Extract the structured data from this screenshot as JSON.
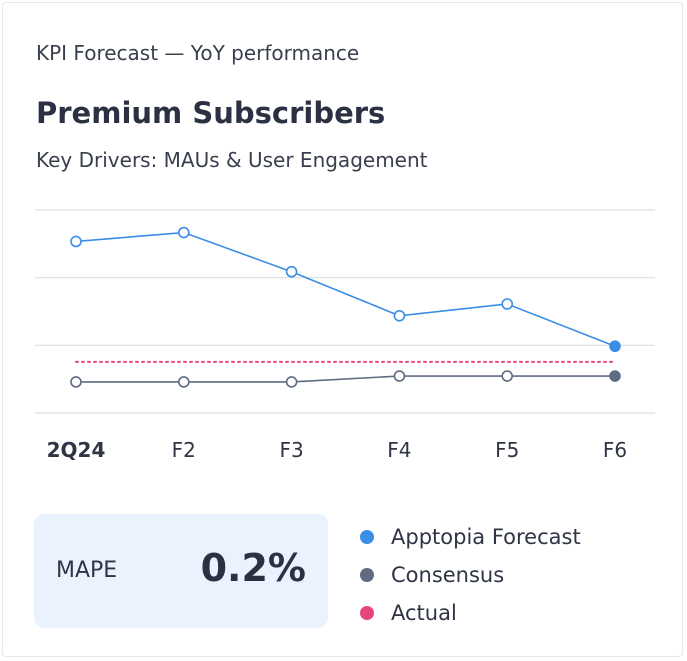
{
  "header": {
    "kicker": "KPI Forecast — YoY performance",
    "title": "Premium Subscribers",
    "subtitle": "Key Drivers: MAUs & User Engagement"
  },
  "chart_data": {
    "type": "line",
    "x": [
      "2Q24",
      "F2",
      "F3",
      "F4",
      "F5",
      "F6"
    ],
    "highlight_x": "2Q24",
    "ylim": [
      0,
      100
    ],
    "grid": true,
    "series": [
      {
        "name": "Apptopia Forecast",
        "color": "#3a8ee6",
        "values": [
          84.5,
          88.9,
          69.6,
          47.9,
          53.7,
          32.9
        ],
        "last_filled": true
      },
      {
        "name": "Consensus",
        "color": "#5f6b80",
        "values": [
          15.3,
          15.3,
          15.3,
          18.2,
          18.2,
          18.2
        ],
        "last_filled": true
      },
      {
        "name": "Actual",
        "color": "#e8457e",
        "values": [
          25.2,
          25.2,
          25.2,
          25.2,
          25.2,
          25.2
        ],
        "style": "dotted"
      }
    ]
  },
  "mape": {
    "label": "MAPE",
    "value": "0.2%"
  },
  "legend": [
    {
      "label": "Apptopia Forecast",
      "color": "#3a8ee6"
    },
    {
      "label": "Consensus",
      "color": "#5f6b80"
    },
    {
      "label": "Actual",
      "color": "#e8457e"
    }
  ]
}
